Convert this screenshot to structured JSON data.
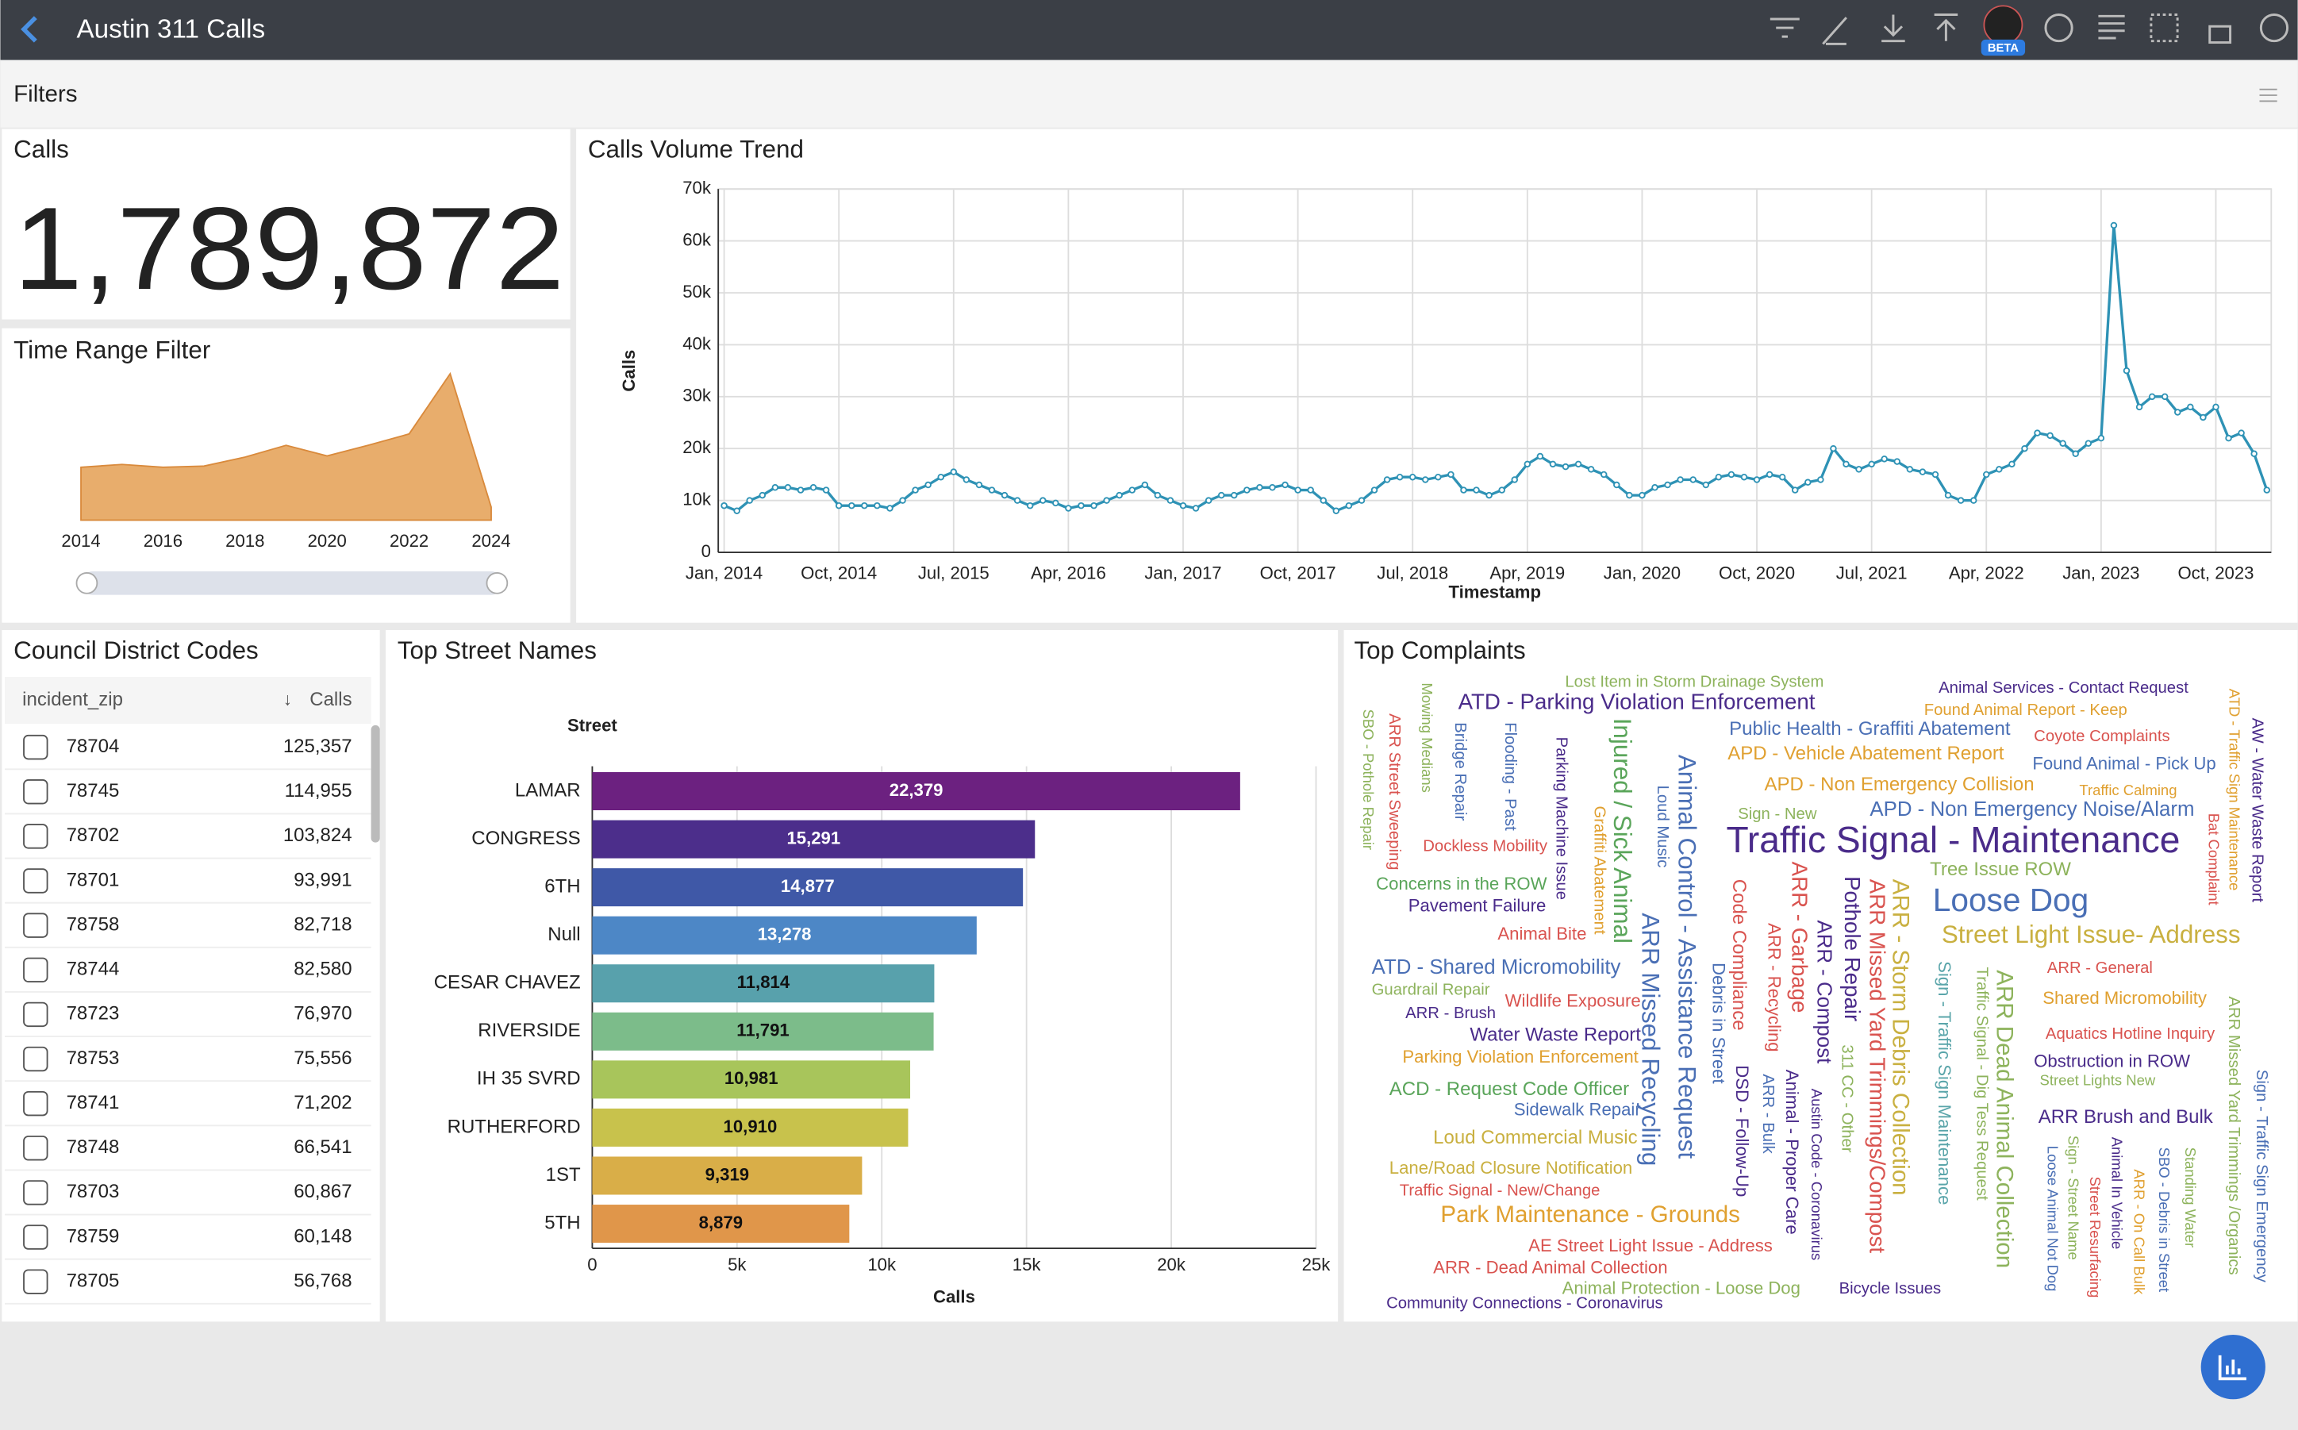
{
  "header": {
    "title": "Austin 311 Calls",
    "badge": "BETA"
  },
  "filters": {
    "title": "Filters"
  },
  "big_number": {
    "title": "Calls",
    "value": "1,789,872"
  },
  "chart_data": [
    {
      "type": "area",
      "title": "Time Range Filter",
      "color": "#e8ad6c",
      "x": [
        2014,
        2015,
        2016,
        2017,
        2018,
        2019,
        2020,
        2021,
        2022,
        2023,
        2024
      ],
      "values": [
        130000,
        137000,
        130000,
        133000,
        155000,
        184000,
        158000,
        184000,
        212000,
        360000,
        32000
      ],
      "xlim": [
        2014,
        2024
      ],
      "ylim": [
        0,
        400000
      ],
      "xticks": [
        2014,
        2016,
        2018,
        2020,
        2022,
        2024
      ]
    },
    {
      "type": "line",
      "title": "Calls Volume Trend",
      "x_label": "Timestamp",
      "y_label": "Calls",
      "color": "#2e92b5",
      "grid": true,
      "x": [
        "2014-01",
        "2014-02",
        "2014-03",
        "2014-04",
        "2014-05",
        "2014-06",
        "2014-07",
        "2014-08",
        "2014-09",
        "2014-10",
        "2014-11",
        "2014-12",
        "2015-01",
        "2015-02",
        "2015-03",
        "2015-04",
        "2015-05",
        "2015-06",
        "2015-07",
        "2015-08",
        "2015-09",
        "2015-10",
        "2015-11",
        "2015-12",
        "2016-01",
        "2016-02",
        "2016-03",
        "2016-04",
        "2016-05",
        "2016-06",
        "2016-07",
        "2016-08",
        "2016-09",
        "2016-10",
        "2016-11",
        "2016-12",
        "2017-01",
        "2017-02",
        "2017-03",
        "2017-04",
        "2017-05",
        "2017-06",
        "2017-07",
        "2017-08",
        "2017-09",
        "2017-10",
        "2017-11",
        "2017-12",
        "2018-01",
        "2018-02",
        "2018-03",
        "2018-04",
        "2018-05",
        "2018-06",
        "2018-07",
        "2018-08",
        "2018-09",
        "2018-10",
        "2018-11",
        "2018-12",
        "2019-01",
        "2019-02",
        "2019-03",
        "2019-04",
        "2019-05",
        "2019-06",
        "2019-07",
        "2019-08",
        "2019-09",
        "2019-10",
        "2019-11",
        "2019-12",
        "2020-01",
        "2020-02",
        "2020-03",
        "2020-04",
        "2020-05",
        "2020-06",
        "2020-07",
        "2020-08",
        "2020-09",
        "2020-10",
        "2020-11",
        "2020-12",
        "2021-01",
        "2021-02",
        "2021-03",
        "2021-04",
        "2021-05",
        "2021-06",
        "2021-07",
        "2021-08",
        "2021-09",
        "2021-10",
        "2021-11",
        "2021-12",
        "2022-01",
        "2022-02",
        "2022-03",
        "2022-04",
        "2022-05",
        "2022-06",
        "2022-07",
        "2022-08",
        "2022-09",
        "2022-10",
        "2022-11",
        "2022-12",
        "2023-01",
        "2023-02",
        "2023-03",
        "2023-04",
        "2023-05",
        "2023-06",
        "2023-07",
        "2023-08",
        "2023-09",
        "2023-10",
        "2023-11",
        "2023-12",
        "2024-01",
        "2024-02"
      ],
      "values": [
        9000,
        8000,
        10000,
        11000,
        12500,
        12500,
        12000,
        12500,
        12000,
        9000,
        9000,
        9000,
        9000,
        8500,
        10000,
        12000,
        13000,
        14500,
        15500,
        14000,
        13000,
        12000,
        11000,
        10000,
        9000,
        10000,
        9500,
        8500,
        9000,
        9000,
        10000,
        11000,
        12000,
        13000,
        11000,
        10000,
        9000,
        8500,
        10000,
        11000,
        11000,
        12000,
        12500,
        12500,
        13000,
        12000,
        12000,
        10000,
        8000,
        9000,
        10000,
        12000,
        14000,
        14500,
        14500,
        14000,
        14500,
        15000,
        12000,
        12000,
        11000,
        12000,
        14000,
        17000,
        18500,
        17000,
        16500,
        17000,
        16000,
        15000,
        13000,
        11000,
        11000,
        12500,
        13000,
        14000,
        14000,
        13000,
        14500,
        15000,
        14500,
        14000,
        15000,
        14500,
        12000,
        13500,
        14000,
        20000,
        17000,
        16000,
        17000,
        18000,
        17500,
        16000,
        15500,
        15000,
        11000,
        10000,
        10000,
        15000,
        16000,
        17000,
        20000,
        23000,
        22500,
        21000,
        19000,
        21000,
        22000,
        63000,
        35000,
        28000,
        30000,
        30000,
        27000,
        28000,
        26000,
        28000,
        22000,
        23000,
        19000,
        12000
      ],
      "xlim": [
        "2014-01",
        "2024-02"
      ],
      "xticks": [
        {
          "value": "2014-01",
          "label": "Jan, 2014"
        },
        {
          "value": "2014-10",
          "label": "Oct, 2014"
        },
        {
          "value": "2015-07",
          "label": "Jul, 2015"
        },
        {
          "value": "2016-04",
          "label": "Apr, 2016"
        },
        {
          "value": "2017-01",
          "label": "Jan, 2017"
        },
        {
          "value": "2017-10",
          "label": "Oct, 2017"
        },
        {
          "value": "2018-07",
          "label": "Jul, 2018"
        },
        {
          "value": "2019-04",
          "label": "Apr, 2019"
        },
        {
          "value": "2020-01",
          "label": "Jan, 2020"
        },
        {
          "value": "2020-10",
          "label": "Oct, 2020"
        },
        {
          "value": "2021-07",
          "label": "Jul, 2021"
        },
        {
          "value": "2022-04",
          "label": "Apr, 2022"
        },
        {
          "value": "2023-01",
          "label": "Jan, 2023"
        },
        {
          "value": "2023-10",
          "label": "Oct, 2023"
        }
      ],
      "ylim": [
        0,
        70000
      ],
      "yticks": [
        0,
        {
          "value": 10000,
          "label": "10k"
        },
        {
          "value": 20000,
          "label": "20k"
        },
        {
          "value": 30000,
          "label": "30k"
        },
        {
          "value": 40000,
          "label": "40k"
        },
        {
          "value": 50000,
          "label": "50k"
        },
        {
          "value": 60000,
          "label": "60k"
        },
        {
          "value": 70000,
          "label": "70k"
        }
      ]
    },
    {
      "type": "bar",
      "orientation": "horizontal",
      "title": "Top Street Names",
      "y_label": "Street",
      "x_label": "Calls",
      "grid": true,
      "categories": [
        "LAMAR",
        "CONGRESS",
        "6TH",
        "Null",
        "CESAR CHAVEZ",
        "RIVERSIDE",
        "IH 35 SVRD",
        "RUTHERFORD",
        "1ST",
        "5TH"
      ],
      "values": [
        22379,
        15291,
        14877,
        13278,
        11814,
        11791,
        10981,
        10910,
        9319,
        8879
      ],
      "value_labels": [
        "22,379",
        "15,291",
        "14,877",
        "13,278",
        "11,814",
        "11,791",
        "10,981",
        "10,910",
        "9,319",
        "8,879"
      ],
      "colors": [
        "#6c2180",
        "#4c2e8b",
        "#3f58a7",
        "#4d87c6",
        "#58a1ac",
        "#7cbc8a",
        "#a8c55b",
        "#c8c24c",
        "#d9ae48",
        "#e0964a"
      ],
      "xlim": [
        0,
        25000
      ],
      "xticks": [
        0,
        {
          "value": 5000,
          "label": "5k"
        },
        {
          "value": 10000,
          "label": "10k"
        },
        {
          "value": 15000,
          "label": "15k"
        },
        {
          "value": 20000,
          "label": "20k"
        },
        {
          "value": 25000,
          "label": "25k"
        }
      ]
    }
  ],
  "table": {
    "title": "Council District Codes",
    "columns": [
      "incident_zip",
      "Calls"
    ],
    "rows": [
      [
        "78704",
        "125,357"
      ],
      [
        "78745",
        "114,955"
      ],
      [
        "78702",
        "103,824"
      ],
      [
        "78701",
        "93,991"
      ],
      [
        "78758",
        "82,718"
      ],
      [
        "78744",
        "82,580"
      ],
      [
        "78723",
        "76,970"
      ],
      [
        "78753",
        "75,556"
      ],
      [
        "78741",
        "71,202"
      ],
      [
        "78748",
        "66,541"
      ],
      [
        "78703",
        "60,867"
      ],
      [
        "78759",
        "60,148"
      ],
      [
        "78705",
        "56,768"
      ]
    ]
  },
  "wordcloud": {
    "title": "Top Complaints",
    "words": [
      "Lost Item in Storm Drainage System",
      "Animal Services - Contact Request",
      "ATD - Parking Violation Enforcement",
      "Found Animal Report - Keep",
      "Public Health - Graffiti Abatement",
      "Coyote Complaints",
      "APD - Vehicle Abatement Report",
      "Found Animal - Pick Up",
      "APD - Non Emergency Collision",
      "Traffic Calming",
      "Sign - New",
      "APD - Non Emergency Noise/Alarm",
      "Traffic Signal - Maintenance",
      "Dockless Mobility",
      "Tree Issue ROW",
      "Concerns in the ROW",
      "Pavement Failure",
      "Loose Dog",
      "Street Light Issue- Address",
      "Animal Bite",
      "ARR - General",
      "ATD - Shared Micromobility",
      "Guardrail Repair",
      "Shared Micromobility",
      "Wildlife Exposure",
      "ARR - Brush",
      "Aquatics Hotline Inquiry",
      "Water Waste Report",
      "Parking Violation Enforcement",
      "Obstruction in ROW",
      "Street Lights New",
      "ACD - Request Code Officer",
      "Sidewalk Repair",
      "ARR Brush and Bulk",
      "Loud Commercial Music",
      "Lane/Road Closure Notification",
      "Traffic Signal - New/Change",
      "Park Maintenance - Grounds",
      "AE Street Light Issue - Address",
      "ARR - Dead Animal Collection",
      "Animal Protection - Loose Dog",
      "Bicycle Issues",
      "Community Connections - Coronavirus",
      "SBO - Pothole Repair",
      "ARR Street Sweeping",
      "Mowing Medians",
      "Bridge Repair",
      "Flooding - Past",
      "Parking Machine Issue",
      "Graffiti Abatement",
      "Injured / Sick Animal",
      "Loud Music",
      "Animal Control - Assistance Request",
      "ARR Missed Recycling",
      "Code Compliance",
      "Debris in Street",
      "ARR - Garbage",
      "ARR - Recycling",
      "ARR - Compost",
      "DSD - Follow-Up",
      "ARR - Bulk",
      "Animal - Proper Care",
      "Austin Code - Coronavirus",
      "Pothole Repair",
      "311 CC - Other",
      "ARR Missed Yard Trimmings/Compost",
      "ARR - Storm Debris Collection",
      "Sign - Traffic Sign Maintenance",
      "Traffic Signal - Dig Tess Request",
      "ARR Dead Animal Collection",
      "Loose Animal Not Dog",
      "Sign - Street Name",
      "Street Resurfacing",
      "Animal In Vehicle",
      "ARR - On Call Bulk",
      "SBO - Debris in Street",
      "Standing Water",
      "ARR Missed Yard Trimmings /Organics",
      "Sign - Traffic Sign Emergency",
      "ATD - Traffic Sign Maintenance",
      "Bat Complaint",
      "AW - Water Waste Report"
    ]
  }
}
